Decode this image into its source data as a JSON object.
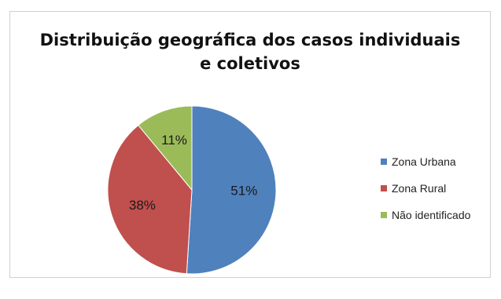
{
  "chart_data": {
    "type": "pie",
    "title_lines": [
      "Distribuição geográfica dos casos individuais",
      "e coletivos"
    ],
    "categories": [
      "Zona Urbana",
      "Zona Rural",
      "Não identificado"
    ],
    "values": [
      51,
      38,
      11
    ],
    "labels": [
      "51%",
      "38%",
      "11%"
    ],
    "colors": [
      "#4f81bd",
      "#c0504d",
      "#9bbb59"
    ],
    "legend_position": "right"
  }
}
